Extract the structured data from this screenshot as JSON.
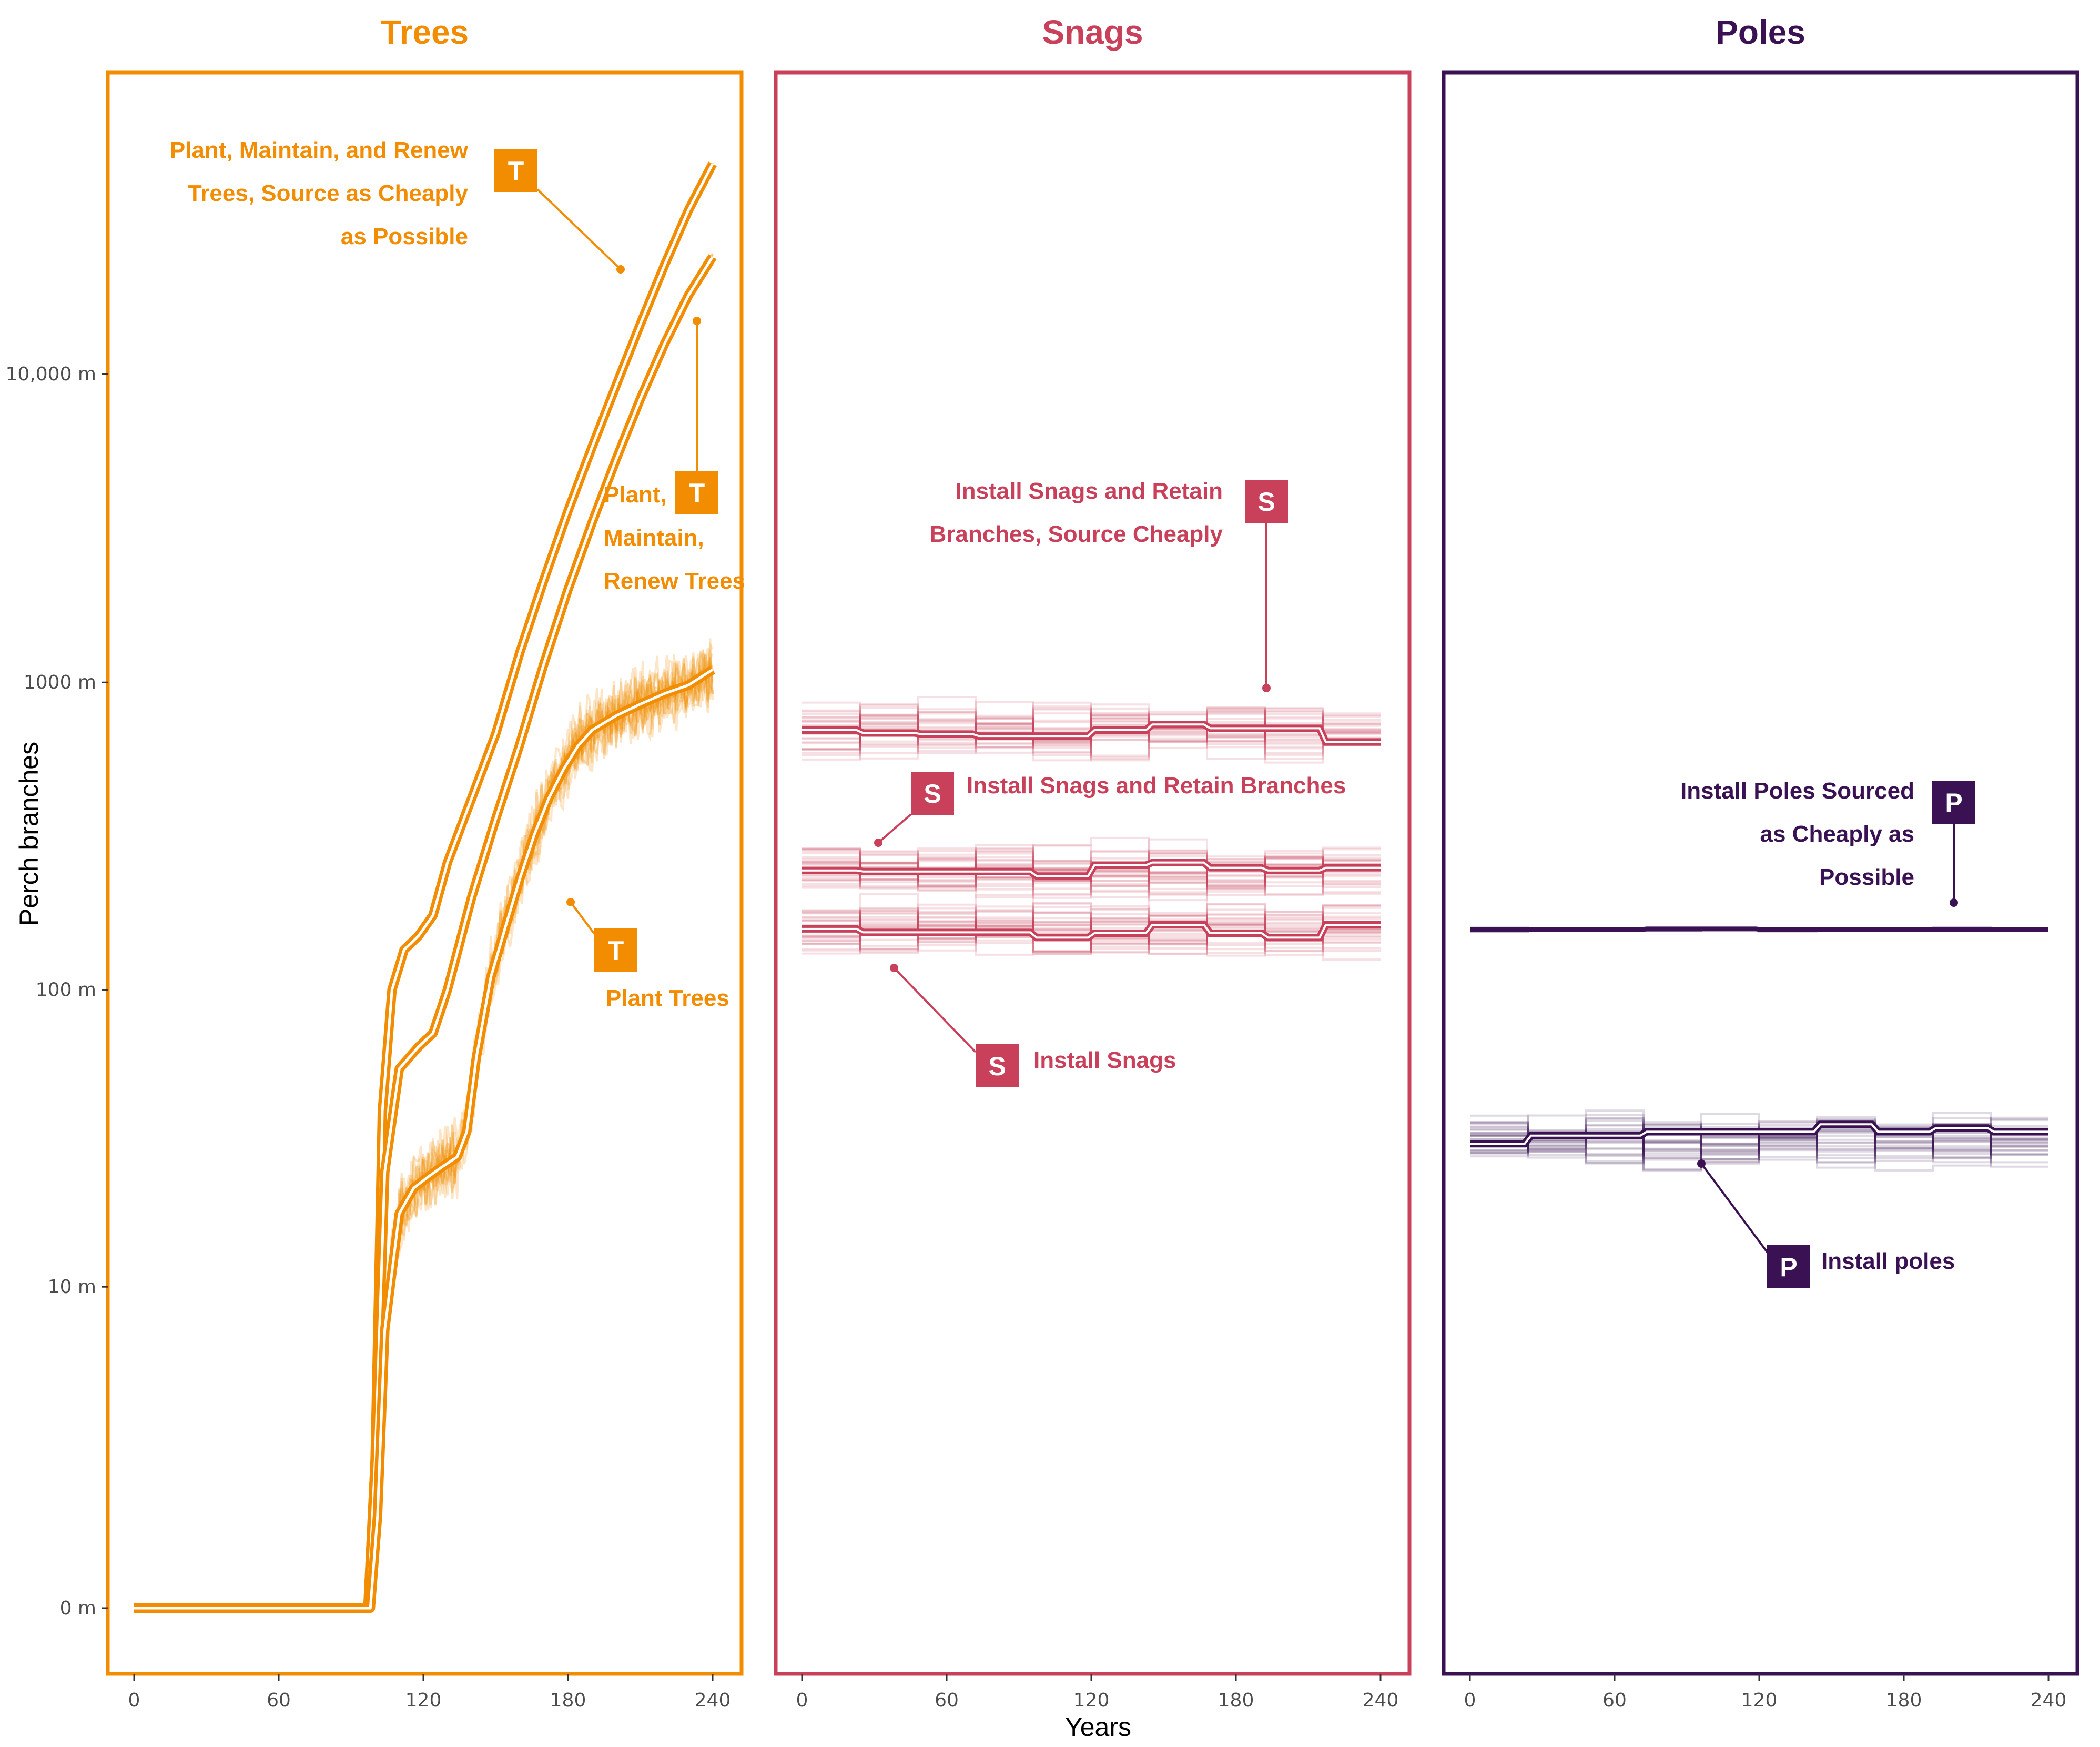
{
  "chart_data": {
    "type": "line",
    "ylabel": "Perch branches",
    "xlabel": "Years",
    "x_ticks": [
      0,
      60,
      120,
      180,
      240
    ],
    "xlim": [
      -10,
      250
    ],
    "y_scale": "pseudo-log",
    "y_ticks": [
      {
        "value": 0,
        "label": "0 m"
      },
      {
        "value": 10,
        "label": "10 m"
      },
      {
        "value": 100,
        "label": "100 m"
      },
      {
        "value": 1000,
        "label": "1000 m"
      },
      {
        "value": 10000,
        "label": "10,000 m"
      }
    ],
    "ylim": [
      0,
      75000
    ],
    "panels": [
      {
        "title": "Trees",
        "color": "#F28C00",
        "series": [
          {
            "name": "Plant, Maintain, and Renew Trees, Source as Cheaply as Possible",
            "badge": "T",
            "style": "smooth",
            "points": [
              [
                0,
                0
              ],
              [
                97,
                0
              ],
              [
                100,
                2
              ],
              [
                103,
                40
              ],
              [
                107,
                100
              ],
              [
                112,
                135
              ],
              [
                118,
                150
              ],
              [
                124,
                175
              ],
              [
                130,
                260
              ],
              [
                140,
                420
              ],
              [
                150,
                680
              ],
              [
                160,
                1250
              ],
              [
                170,
                2150
              ],
              [
                180,
                3600
              ],
              [
                190,
                5800
              ],
              [
                200,
                9200
              ],
              [
                210,
                14500
              ],
              [
                220,
                22500
              ],
              [
                230,
                34000
              ],
              [
                240,
                48000
              ]
            ]
          },
          {
            "name": "Plant, Maintain, Renew Trees",
            "badge": "T",
            "style": "smooth",
            "points": [
              [
                0,
                0
              ],
              [
                97,
                0
              ],
              [
                100,
                2
              ],
              [
                104,
                25
              ],
              [
                110,
                55
              ],
              [
                118,
                65
              ],
              [
                124,
                72
              ],
              [
                130,
                100
              ],
              [
                140,
                200
              ],
              [
                150,
                360
              ],
              [
                160,
                630
              ],
              [
                170,
                1150
              ],
              [
                180,
                2000
              ],
              [
                190,
                3300
              ],
              [
                200,
                5300
              ],
              [
                210,
                8300
              ],
              [
                220,
                12500
              ],
              [
                230,
                18000
              ],
              [
                240,
                24000
              ]
            ]
          },
          {
            "name": "Plant Trees",
            "badge": "T",
            "style": "noisy",
            "points": [
              [
                0,
                0
              ],
              [
                98,
                0
              ],
              [
                101,
                1
              ],
              [
                104,
                7
              ],
              [
                110,
                18
              ],
              [
                116,
                22
              ],
              [
                122,
                24
              ],
              [
                128,
                26
              ],
              [
                134,
                28
              ],
              [
                138,
                34
              ],
              [
                142,
                60
              ],
              [
                148,
                110
              ],
              [
                154,
                160
              ],
              [
                160,
                230
              ],
              [
                166,
                320
              ],
              [
                172,
                420
              ],
              [
                178,
                520
              ],
              [
                184,
                620
              ],
              [
                190,
                700
              ],
              [
                200,
                780
              ],
              [
                210,
                850
              ],
              [
                220,
                920
              ],
              [
                230,
                980
              ],
              [
                240,
                1100
              ]
            ]
          }
        ],
        "annotations": [
          {
            "lines": [
              "Plant, Maintain, and Renew",
              "Trees, Source as Cheaply",
              "as Possible"
            ],
            "badge": "T"
          },
          {
            "lines": [
              "Plant,",
              "Maintain,",
              "Renew Trees"
            ],
            "badge": "T"
          },
          {
            "lines": [
              "Plant Trees"
            ],
            "badge": "T"
          }
        ]
      },
      {
        "title": "Snags",
        "color": "#C8405A",
        "series": [
          {
            "name": "Install Snags and Retain Branches, Source Cheaply",
            "badge": "S",
            "style": "stepped",
            "base": 700,
            "wobble": [
              0,
              -15,
              -20,
              -30,
              -30,
              0,
              30,
              10,
              10,
              -60
            ]
          },
          {
            "name": "Install Snags and Retain Branches",
            "badge": "S",
            "style": "stepped",
            "base": 245,
            "wobble": [
              0,
              -2,
              -2,
              -2,
              -10,
              10,
              15,
              5,
              0,
              5
            ]
          },
          {
            "name": "Install Snags",
            "badge": "S",
            "style": "stepped",
            "base": 158,
            "wobble": [
              0,
              -4,
              -4,
              -4,
              -10,
              -5,
              5,
              -5,
              -10,
              5
            ]
          }
        ],
        "annotations": [
          {
            "lines": [
              "Install Snags and Retain",
              "Branches, Source Cheaply"
            ],
            "badge": "S"
          },
          {
            "lines": [
              "Install Snags and Retain Branches"
            ],
            "badge": "S"
          },
          {
            "lines": [
              "Install Snags"
            ],
            "badge": "S"
          }
        ]
      },
      {
        "title": "Poles",
        "color": "#3A1253",
        "series": [
          {
            "name": "Install Poles Sourced as Cheaply as Possible",
            "badge": "P",
            "style": "flat",
            "base": 157,
            "wobble": [
              0,
              0,
              0,
              1,
              1,
              0,
              0,
              0,
              0,
              0
            ]
          },
          {
            "name": "Install poles",
            "badge": "P",
            "style": "stepped",
            "base": 32,
            "wobble": [
              -1,
              1,
              1,
              2,
              2,
              2,
              4,
              2,
              3,
              2
            ]
          }
        ],
        "annotations": [
          {
            "lines": [
              "Install Poles Sourced",
              "as Cheaply as",
              "Possible"
            ],
            "badge": "P"
          },
          {
            "lines": [
              "Install poles"
            ],
            "badge": "P"
          }
        ]
      }
    ]
  }
}
